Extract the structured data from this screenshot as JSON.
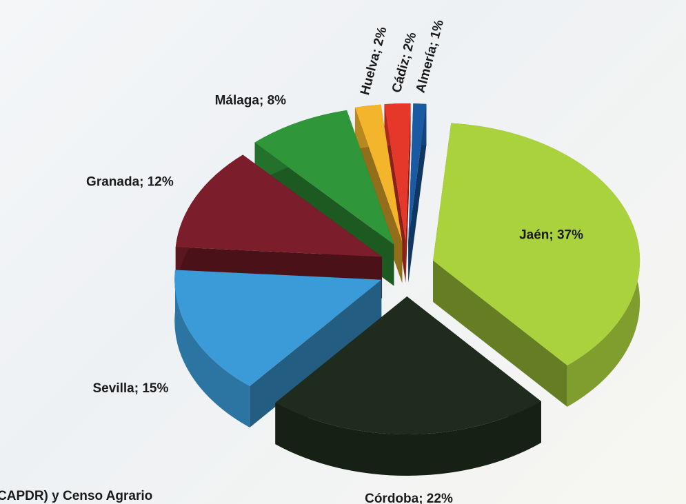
{
  "chart_data": {
    "type": "pie",
    "values": [
      37,
      22,
      15,
      12,
      8,
      2,
      2,
      1
    ],
    "value_labels": [
      "Jaén; 37%",
      "Córdoba; 22%",
      "Sevilla; 15%",
      "Granada; 12%",
      "Málaga; 8%",
      "Huelva; 2%",
      "Cádiz; 2%",
      "Almería; 1%"
    ],
    "colors": [
      "#a9d23c",
      "#1f2b1c",
      "#3b9bd8",
      "#7b1d2a",
      "#2f9639",
      "#f3b52b",
      "#e5372a",
      "#1a5aa3"
    ],
    "source": "CAPDR) y Censo Agrario"
  }
}
